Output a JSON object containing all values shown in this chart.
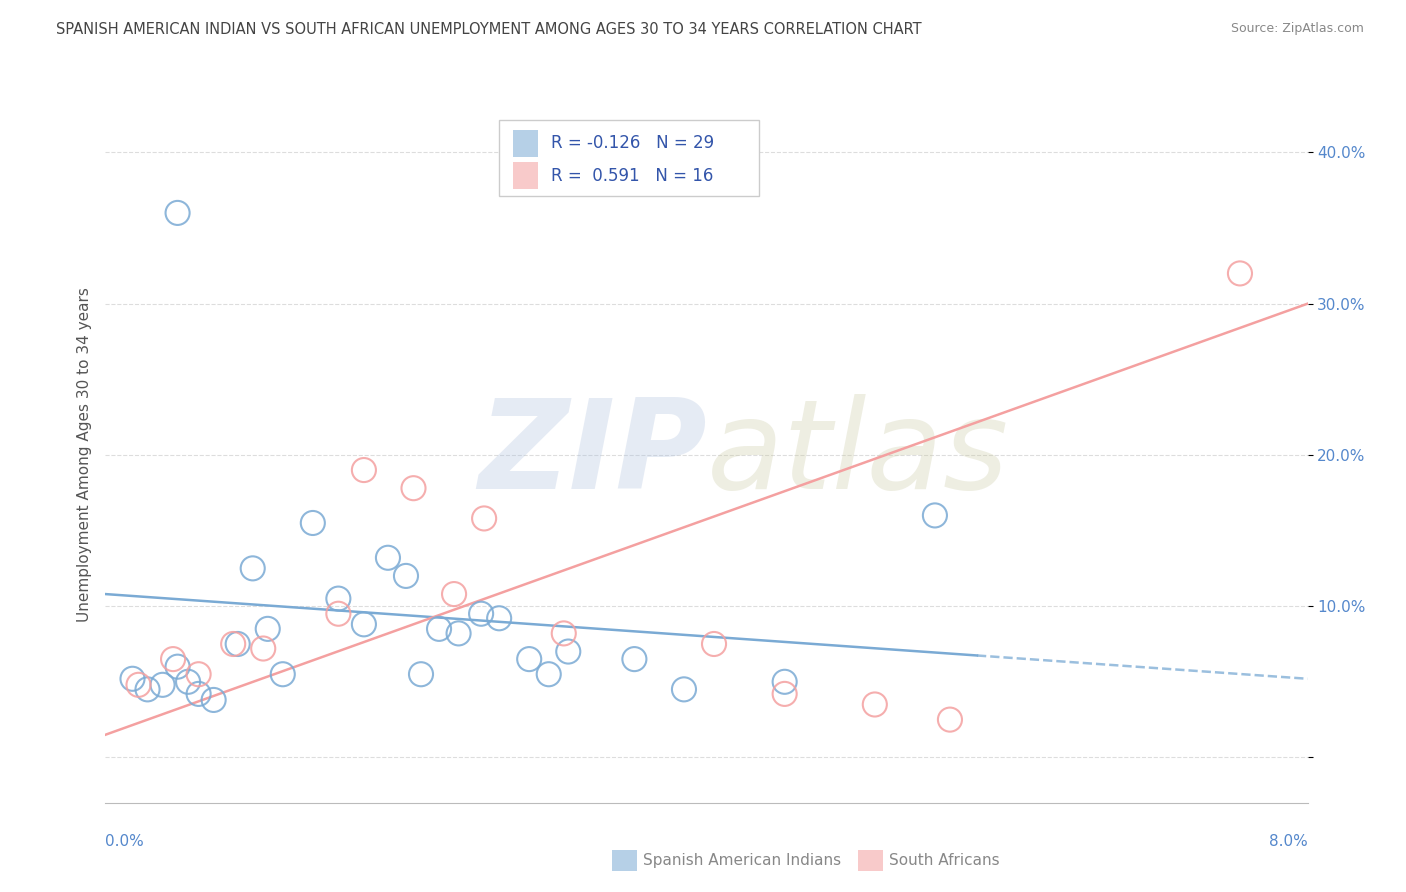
{
  "title": "SPANISH AMERICAN INDIAN VS SOUTH AFRICAN UNEMPLOYMENT AMONG AGES 30 TO 34 YEARS CORRELATION CHART",
  "source": "Source: ZipAtlas.com",
  "ylabel": "Unemployment Among Ages 30 to 34 years",
  "xlim": [
    0.0,
    8.0
  ],
  "ylim": [
    -3.0,
    43.0
  ],
  "yticks": [
    0.0,
    10.0,
    20.0,
    30.0,
    40.0
  ],
  "ytick_labels": [
    "",
    "10.0%",
    "20.0%",
    "30.0%",
    "40.0%"
  ],
  "legend_blue_r": "-0.126",
  "legend_blue_n": "29",
  "legend_pink_r": " 0.591",
  "legend_pink_n": "16",
  "blue_color": "#7aaad4",
  "pink_color": "#f4a0a0",
  "blue_scatter": [
    [
      0.18,
      5.2
    ],
    [
      0.28,
      4.5
    ],
    [
      0.38,
      4.8
    ],
    [
      0.48,
      6.0
    ],
    [
      0.55,
      5.0
    ],
    [
      0.62,
      4.2
    ],
    [
      0.72,
      3.8
    ],
    [
      0.88,
      7.5
    ],
    [
      0.98,
      12.5
    ],
    [
      1.08,
      8.5
    ],
    [
      1.18,
      5.5
    ],
    [
      1.38,
      15.5
    ],
    [
      1.55,
      10.5
    ],
    [
      1.72,
      8.8
    ],
    [
      1.88,
      13.2
    ],
    [
      2.0,
      12.0
    ],
    [
      2.1,
      5.5
    ],
    [
      2.22,
      8.5
    ],
    [
      2.35,
      8.2
    ],
    [
      2.5,
      9.5
    ],
    [
      2.62,
      9.2
    ],
    [
      2.82,
      6.5
    ],
    [
      2.95,
      5.5
    ],
    [
      3.08,
      7.0
    ],
    [
      3.52,
      6.5
    ],
    [
      3.85,
      4.5
    ],
    [
      4.52,
      5.0
    ],
    [
      5.52,
      16.0
    ],
    [
      0.48,
      36.0
    ]
  ],
  "pink_scatter": [
    [
      0.22,
      4.8
    ],
    [
      0.45,
      6.5
    ],
    [
      0.62,
      5.5
    ],
    [
      0.85,
      7.5
    ],
    [
      1.05,
      7.2
    ],
    [
      1.55,
      9.5
    ],
    [
      1.72,
      19.0
    ],
    [
      2.05,
      17.8
    ],
    [
      2.32,
      10.8
    ],
    [
      2.52,
      15.8
    ],
    [
      3.05,
      8.2
    ],
    [
      4.05,
      7.5
    ],
    [
      4.52,
      4.2
    ],
    [
      5.12,
      3.5
    ],
    [
      5.62,
      2.5
    ],
    [
      7.55,
      32.0
    ]
  ],
  "blue_line_x0": 0.0,
  "blue_line_y0": 10.8,
  "blue_line_x1": 8.0,
  "blue_line_y1": 5.2,
  "blue_solid_end_x": 5.8,
  "pink_line_x0": 0.0,
  "pink_line_y0": 1.5,
  "pink_line_x1": 8.0,
  "pink_line_y1": 30.0,
  "watermark_zip": "ZIP",
  "watermark_atlas": "atlas",
  "background_color": "#FFFFFF",
  "grid_color": "#DDDDDD",
  "tick_color": "#5588CC",
  "title_color": "#444444",
  "source_color": "#888888",
  "legend_text_color": "#3355AA",
  "bottom_legend_color": "#888888"
}
